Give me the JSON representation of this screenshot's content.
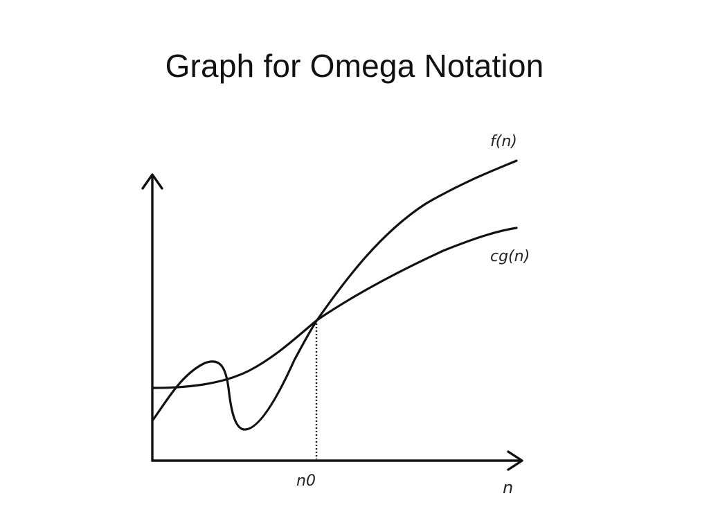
{
  "slide": {
    "title": "Graph for Omega Notation"
  },
  "diagram": {
    "curve_f_label": "f(n)",
    "curve_cg_label": "cg(n)",
    "threshold_label": "n0",
    "x_axis_label": "n"
  }
}
